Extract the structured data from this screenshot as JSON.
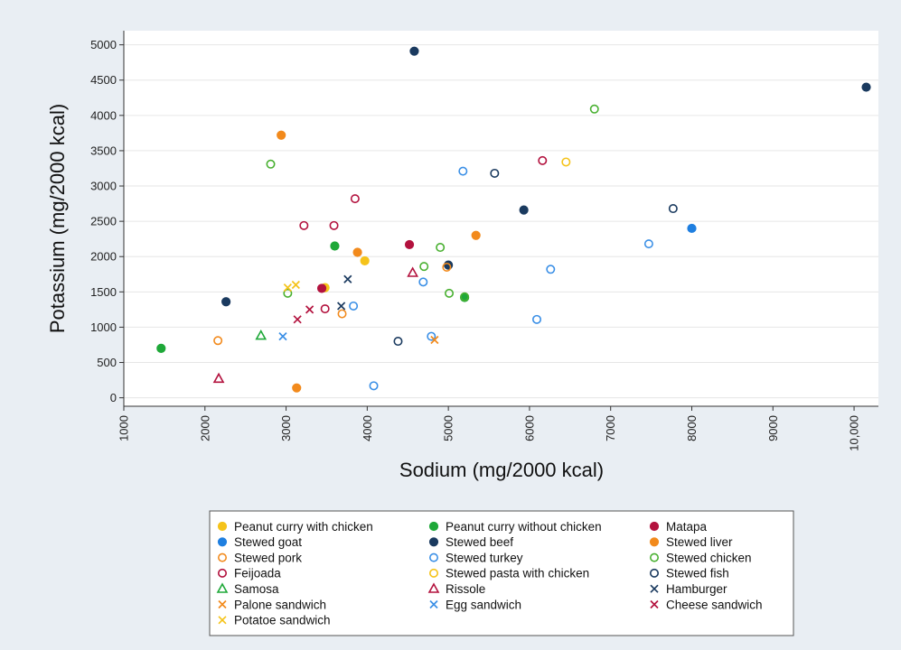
{
  "chart_data": {
    "type": "scatter",
    "title": "",
    "xlabel": "Sodium (mg/2000 kcal)",
    "ylabel": "Potassium (mg/2000 kcal)",
    "xlim": [
      1000,
      10300
    ],
    "ylim": [
      -120,
      5200
    ],
    "x_ticks": [
      1000,
      2000,
      3000,
      4000,
      5000,
      6000,
      7000,
      8000,
      9000,
      10000
    ],
    "x_tick_labels": [
      "1000",
      "2000",
      "3000",
      "4000",
      "5000",
      "6000",
      "7000",
      "8000",
      "9000",
      "10,000"
    ],
    "y_ticks": [
      0,
      500,
      1000,
      1500,
      2000,
      2500,
      3000,
      3500,
      4000,
      4500,
      5000
    ],
    "y_tick_labels": [
      "0",
      "500",
      "1000",
      "1500",
      "2000",
      "2500",
      "3000",
      "3500",
      "4000",
      "4500",
      "5000"
    ],
    "grid": "horizontal",
    "legend_position": "bottom",
    "series": [
      {
        "name": "Peanut curry with chicken",
        "marker": "circle-filled",
        "color": "#f5c31a",
        "points": [
          [
            3480,
            1560
          ],
          [
            3970,
            1940
          ]
        ]
      },
      {
        "name": "Peanut curry without chicken",
        "marker": "circle-filled",
        "color": "#1ea838",
        "points": [
          [
            1460,
            700
          ],
          [
            3600,
            2150
          ],
          [
            5200,
            1420
          ]
        ]
      },
      {
        "name": "Matapa",
        "marker": "circle-filled",
        "color": "#b3123e",
        "points": [
          [
            3440,
            1550
          ],
          [
            4520,
            2170
          ]
        ]
      },
      {
        "name": "Stewed goat",
        "marker": "circle-filled",
        "color": "#1f7fe0",
        "points": [
          [
            8000,
            2400
          ]
        ]
      },
      {
        "name": "Stewed beef",
        "marker": "circle-filled",
        "color": "#1a3a5f",
        "points": [
          [
            2260,
            1360
          ],
          [
            4580,
            4910
          ],
          [
            5000,
            1880
          ],
          [
            5930,
            2660
          ],
          [
            10150,
            4400
          ]
        ]
      },
      {
        "name": "Stewed liver",
        "marker": "circle-filled",
        "color": "#f28a1c",
        "points": [
          [
            2940,
            3720
          ],
          [
            3130,
            140
          ],
          [
            3880,
            2060
          ],
          [
            5340,
            2300
          ]
        ]
      },
      {
        "name": "Stewed pork",
        "marker": "circle-open",
        "color": "#f28a1c",
        "points": [
          [
            2160,
            810
          ],
          [
            3690,
            1190
          ],
          [
            4980,
            1850
          ]
        ]
      },
      {
        "name": "Stewed turkey",
        "marker": "circle-open",
        "color": "#3a8fe6",
        "points": [
          [
            3830,
            1300
          ],
          [
            4080,
            170
          ],
          [
            4690,
            1640
          ],
          [
            4790,
            870
          ],
          [
            5180,
            3210
          ],
          [
            6090,
            1110
          ],
          [
            6260,
            1820
          ],
          [
            7470,
            2180
          ]
        ]
      },
      {
        "name": "Stewed chicken",
        "marker": "circle-open",
        "color": "#48b030",
        "points": [
          [
            2810,
            3310
          ],
          [
            3020,
            1480
          ],
          [
            4700,
            1860
          ],
          [
            4900,
            2130
          ],
          [
            5010,
            1480
          ],
          [
            5200,
            1430
          ],
          [
            6800,
            4090
          ]
        ]
      },
      {
        "name": "Feijoada",
        "marker": "circle-open",
        "color": "#b3123e",
        "points": [
          [
            3220,
            2440
          ],
          [
            3480,
            1260
          ],
          [
            3590,
            2440
          ],
          [
            3850,
            2820
          ],
          [
            6160,
            3360
          ]
        ]
      },
      {
        "name": "Stewed pasta with chicken",
        "marker": "circle-open",
        "color": "#f5c31a",
        "points": [
          [
            6450,
            3340
          ]
        ]
      },
      {
        "name": "Stewed fish",
        "marker": "circle-open",
        "color": "#1a3a5f",
        "points": [
          [
            4380,
            800
          ],
          [
            5570,
            3180
          ],
          [
            7770,
            2680
          ]
        ]
      },
      {
        "name": "Samosa",
        "marker": "triangle-open",
        "color": "#1ea838",
        "points": [
          [
            2690,
            880
          ]
        ]
      },
      {
        "name": "Rissole",
        "marker": "triangle-open",
        "color": "#b3123e",
        "points": [
          [
            2170,
            270
          ],
          [
            4560,
            1770
          ]
        ]
      },
      {
        "name": "Hamburger",
        "marker": "x",
        "color": "#1a3a5f",
        "points": [
          [
            3680,
            1300
          ],
          [
            3760,
            1680
          ]
        ]
      },
      {
        "name": "Palone sandwich",
        "marker": "x",
        "color": "#f28a1c",
        "points": [
          [
            4830,
            820
          ]
        ]
      },
      {
        "name": "Egg sandwich",
        "marker": "x",
        "color": "#3a8fe6",
        "points": [
          [
            2960,
            870
          ]
        ]
      },
      {
        "name": "Cheese sandwich",
        "marker": "x",
        "color": "#b3123e",
        "points": [
          [
            3140,
            1110
          ],
          [
            3290,
            1250
          ]
        ]
      },
      {
        "name": "Potatoe sandwich",
        "marker": "x",
        "color": "#f5c31a",
        "points": [
          [
            3020,
            1560
          ],
          [
            3120,
            1600
          ]
        ]
      }
    ]
  }
}
